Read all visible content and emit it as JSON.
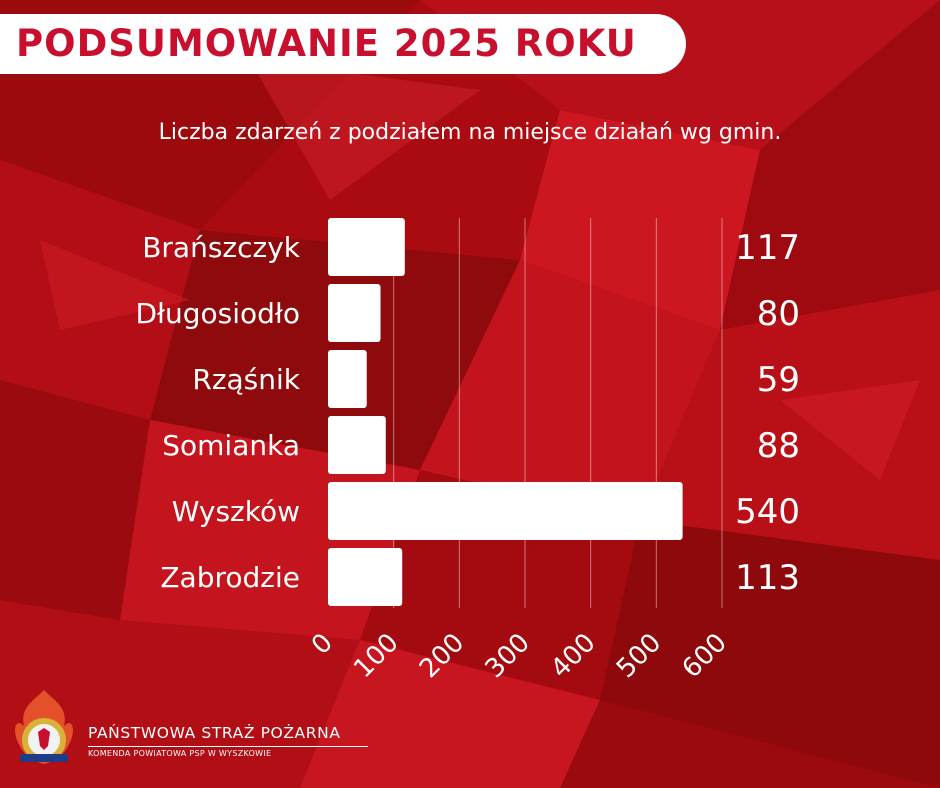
{
  "header": {
    "title": "PODSUMOWANIE 2025 ROKU"
  },
  "colors": {
    "background": "#b10c12",
    "accent": "#c8102e",
    "bar": "#ffffff",
    "text": "#ffffff"
  },
  "chart_data": {
    "type": "bar",
    "orientation": "horizontal",
    "title": "Liczba zdarzeń z podziałem na miejsce działań wg gmin.",
    "categories": [
      "Brańszczyk",
      "Długosiodło",
      "Rząśnik",
      "Somianka",
      "Wyszków",
      "Zabrodzie"
    ],
    "values": [
      117,
      80,
      59,
      88,
      540,
      113
    ],
    "value_labels": [
      "117",
      "80",
      "59",
      "88",
      "540",
      "113"
    ],
    "xlim": [
      0,
      600
    ],
    "xticks": [
      "0",
      "100",
      "200",
      "300",
      "400",
      "500",
      "600"
    ],
    "grid": true,
    "legend": "none"
  },
  "footer": {
    "org_name": "PAŃSTWOWA STRAŻ POŻARNA",
    "org_sub": "KOMENDA POWIATOWA PSP W WYSZKOWIE",
    "logo_icon": "psp-emblem-icon"
  }
}
